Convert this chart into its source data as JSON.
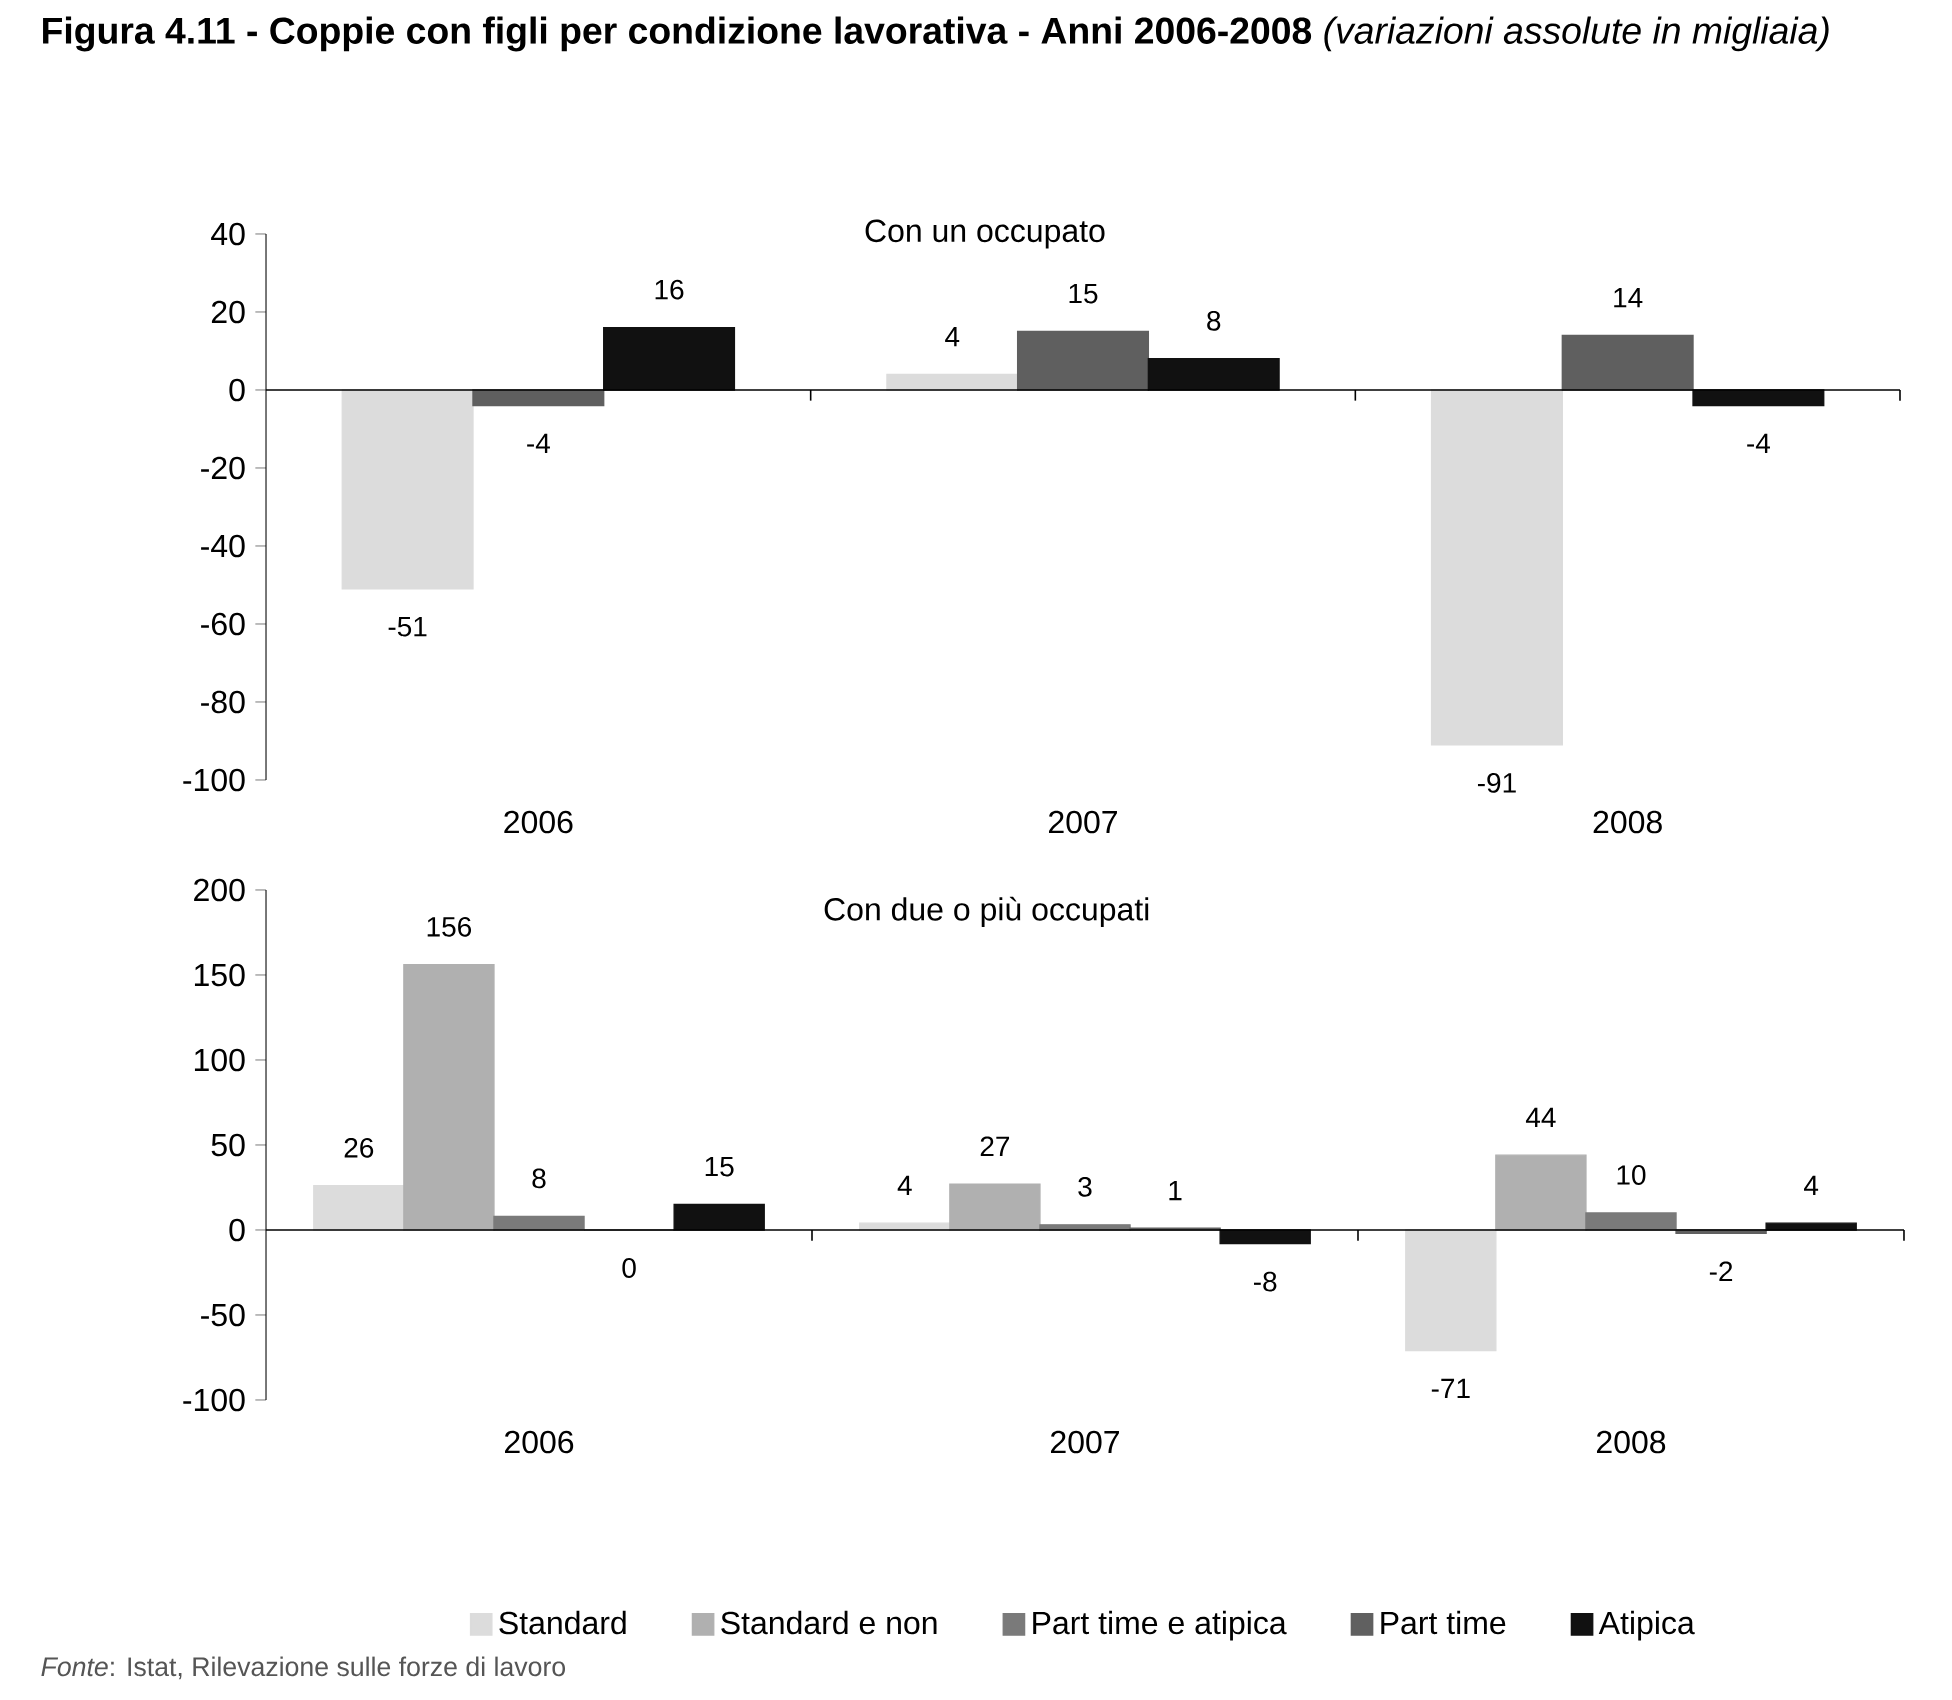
{
  "chart_data": [
    {
      "type": "bar",
      "title": "**Figura 4.11 - Coppie con figli per condizione lavorativa - Anni 2006-2008** *(variazioni assolute in migliaia)*",
      "subtitle": "Con un occupato",
      "categories": [
        "2006",
        "2007",
        "2008"
      ],
      "ylim": [
        -100,
        40
      ],
      "yticks": [
        -100,
        -80,
        -60,
        -40,
        -20,
        0,
        20,
        40
      ],
      "data_labels": true,
      "series": [
        {
          "color": "#dcdcdc",
          "values": [
            -51,
            4,
            -91
          ]
        },
        {
          "color": "#5f5f5f",
          "values": [
            -4,
            15,
            14
          ]
        },
        {
          "color": "#111111",
          "values": [
            16,
            8,
            -4
          ]
        }
      ]
    },
    {
      "type": "bar",
      "subtitle": "Con due o più occupati",
      "categories": [
        "2006",
        "2007",
        "2008"
      ],
      "ylim": [
        -100,
        200
      ],
      "yticks": [
        -100,
        -50,
        0,
        50,
        100,
        150,
        200
      ],
      "data_labels": true,
      "legend": "bottom",
      "annotations": [
        "*Fonte*: Istat, Rilevazione sulle forze di lavoro"
      ],
      "series": [
        {
          "name": "Standard",
          "color": "#dcdcdc",
          "values": [
            26,
            4,
            -71
          ]
        },
        {
          "name": "Standard e non",
          "color": "#b0b0b0",
          "values": [
            156,
            27,
            44
          ]
        },
        {
          "name": "Part time e atipica",
          "color": "#7a7a7a",
          "values": [
            8,
            3,
            10
          ]
        },
        {
          "name": "Part time",
          "color": "#606060",
          "values": [
            0,
            1,
            -2
          ]
        },
        {
          "name": "Atipica",
          "color": "#111111",
          "values": [
            15,
            -8,
            4
          ]
        }
      ]
    }
  ]
}
